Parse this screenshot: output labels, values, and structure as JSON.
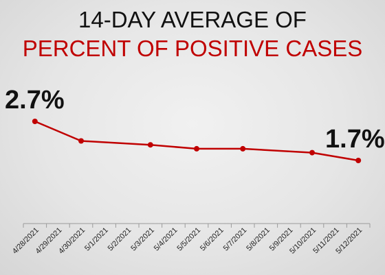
{
  "title_line1": "14-DAY AVERAGE OF",
  "title_line2": "PERCENT OF POSITIVE CASES",
  "callouts": {
    "start": "2.7%",
    "end": "1.7%"
  },
  "colors": {
    "series": "#c00000",
    "title_accent": "#c00000",
    "text": "#111111"
  },
  "chart_data": {
    "type": "line",
    "title": "14-DAY AVERAGE OF PERCENT OF POSITIVE CASES",
    "xlabel": "",
    "ylabel": "",
    "categories": [
      "4/28/2021",
      "4/29/2021",
      "4/30/2021",
      "5/1/2021",
      "5/2/2021",
      "5/3/2021",
      "5/4/2021",
      "5/5/2021",
      "5/6/2021",
      "5/7/2021",
      "5/8/2021",
      "5/9/2021",
      "5/10/2021",
      "5/11/2021",
      "5/12/2021"
    ],
    "series": [
      {
        "values": [
          2.7,
          null,
          2.2,
          null,
          null,
          2.1,
          null,
          2.0,
          null,
          2.0,
          null,
          null,
          1.9,
          null,
          1.7
        ]
      }
    ],
    "data_labels": [
      {
        "category": "4/28/2021",
        "text": "2.7%"
      },
      {
        "category": "5/12/2021",
        "text": "1.7%"
      }
    ],
    "ylim": [
      0,
      3.5
    ],
    "grid": false,
    "y_axis_visible": false,
    "legend": "none"
  }
}
